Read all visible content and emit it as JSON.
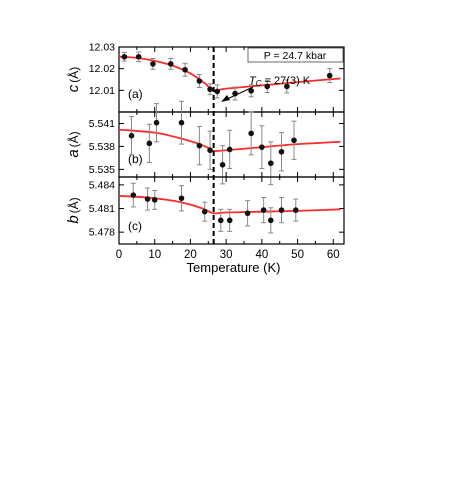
{
  "chart_data": [
    {
      "type": "scatter",
      "panel_label": "(a)",
      "ylabel_symbol": "c",
      "ylabel_unit": "(Å)",
      "ylim": [
        12.0,
        12.03
      ],
      "yticks": [
        12.01,
        12.02,
        12.03
      ],
      "ytick_labels": [
        "12.01",
        "12.02",
        "12.03"
      ],
      "legend": "P = 24.7 kbar",
      "annotation": {
        "prefix": "T",
        "subscript": "C",
        "text": " = 27(3) K"
      },
      "points": [
        {
          "x": 1.5,
          "y": 12.0255,
          "err": 0.002
        },
        {
          "x": 5.5,
          "y": 12.0255,
          "err": 0.0022
        },
        {
          "x": 9.5,
          "y": 12.0222,
          "err": 0.0025
        },
        {
          "x": 14.5,
          "y": 12.0222,
          "err": 0.0025
        },
        {
          "x": 18.5,
          "y": 12.0195,
          "err": 0.003
        },
        {
          "x": 22.5,
          "y": 12.0143,
          "err": 0.003
        },
        {
          "x": 25.5,
          "y": 12.0105,
          "err": 0.0025
        },
        {
          "x": 27.5,
          "y": 12.0095,
          "err": 0.003
        },
        {
          "x": 32.5,
          "y": 12.0085,
          "err": 0.003
        },
        {
          "x": 37.0,
          "y": 12.0098,
          "err": 0.0028
        },
        {
          "x": 41.5,
          "y": 12.0118,
          "err": 0.0028
        },
        {
          "x": 47.0,
          "y": 12.0118,
          "err": 0.003
        },
        {
          "x": 59.0,
          "y": 12.0168,
          "err": 0.0032
        }
      ],
      "fit": [
        [
          0,
          12.0255
        ],
        [
          5,
          12.025
        ],
        [
          10,
          12.0236
        ],
        [
          15,
          12.0214
        ],
        [
          20,
          12.0178
        ],
        [
          24,
          12.0133
        ],
        [
          26.5,
          12.01
        ],
        [
          30,
          12.0108
        ],
        [
          40,
          12.0123
        ],
        [
          50,
          12.0138
        ],
        [
          62,
          12.0155
        ]
      ]
    },
    {
      "type": "scatter",
      "panel_label": "(b)",
      "ylabel_symbol": "a",
      "ylabel_unit": "(Å)",
      "ylim": [
        5.534,
        5.5425
      ],
      "yticks": [
        5.535,
        5.538,
        5.541
      ],
      "ytick_labels": [
        "5.535",
        "5.538",
        "5.541"
      ],
      "points": [
        {
          "x": 3.5,
          "y": 5.5394,
          "err": 0.0025
        },
        {
          "x": 8.5,
          "y": 5.5384,
          "err": 0.0025
        },
        {
          "x": 10.5,
          "y": 5.5411,
          "err": 0.0025
        },
        {
          "x": 17.5,
          "y": 5.5411,
          "err": 0.0028
        },
        {
          "x": 22.5,
          "y": 5.5381,
          "err": 0.0025
        },
        {
          "x": 25.5,
          "y": 5.5375,
          "err": 0.0025
        },
        {
          "x": 29.0,
          "y": 5.5356,
          "err": 0.0025
        },
        {
          "x": 31.0,
          "y": 5.5376,
          "err": 0.0025
        },
        {
          "x": 37.0,
          "y": 5.5397,
          "err": 0.0028
        },
        {
          "x": 40.0,
          "y": 5.5379,
          "err": 0.0028
        },
        {
          "x": 42.5,
          "y": 5.5358,
          "err": 0.0028
        },
        {
          "x": 45.5,
          "y": 5.5373,
          "err": 0.0025
        },
        {
          "x": 49.0,
          "y": 5.5388,
          "err": 0.0025
        }
      ],
      "fit": [
        [
          0,
          5.5402
        ],
        [
          10,
          5.5398
        ],
        [
          16,
          5.5392
        ],
        [
          22,
          5.5384
        ],
        [
          25,
          5.5378
        ],
        [
          26.5,
          5.5374
        ],
        [
          30,
          5.5375
        ],
        [
          40,
          5.5379
        ],
        [
          50,
          5.5383
        ],
        [
          62,
          5.5386
        ]
      ]
    },
    {
      "type": "scatter",
      "panel_label": "(c)",
      "ylabel_symbol": "b",
      "ylabel_unit": "(Å)",
      "ylim": [
        5.4765,
        5.485
      ],
      "yticks": [
        5.478,
        5.481,
        5.484
      ],
      "ytick_labels": [
        "5.478",
        "5.481",
        "5.484"
      ],
      "points": [
        {
          "x": 4.0,
          "y": 5.4827,
          "err": 0.0015
        },
        {
          "x": 8.0,
          "y": 5.4822,
          "err": 0.0014
        },
        {
          "x": 10.0,
          "y": 5.4821,
          "err": 0.0012
        },
        {
          "x": 17.5,
          "y": 5.4823,
          "err": 0.0016
        },
        {
          "x": 24.0,
          "y": 5.4806,
          "err": 0.0012
        },
        {
          "x": 28.5,
          "y": 5.4795,
          "err": 0.0014
        },
        {
          "x": 31.0,
          "y": 5.4795,
          "err": 0.0014
        },
        {
          "x": 36.0,
          "y": 5.4804,
          "err": 0.0016
        },
        {
          "x": 40.5,
          "y": 5.4808,
          "err": 0.0016
        },
        {
          "x": 42.5,
          "y": 5.4795,
          "err": 0.0016
        },
        {
          "x": 45.5,
          "y": 5.4808,
          "err": 0.0016
        },
        {
          "x": 49.5,
          "y": 5.4808,
          "err": 0.0014
        }
      ],
      "fit": [
        [
          0,
          5.4826
        ],
        [
          8,
          5.4824
        ],
        [
          15,
          5.482
        ],
        [
          20,
          5.4815
        ],
        [
          24,
          5.4809
        ],
        [
          26.5,
          5.4804
        ],
        [
          30,
          5.4805
        ],
        [
          40,
          5.4806
        ],
        [
          50,
          5.4807
        ],
        [
          62,
          5.4809
        ]
      ]
    }
  ],
  "shared_x": {
    "xlim": [
      0,
      63
    ],
    "xticks": [
      0,
      10,
      20,
      30,
      40,
      50,
      60
    ],
    "xlabel": "Temperature (K)",
    "transition_x": 26.5
  },
  "colors": {
    "fit": "#ff2a2a",
    "marker": "#111111",
    "errorbar": "#888888",
    "axis": "#000000"
  }
}
